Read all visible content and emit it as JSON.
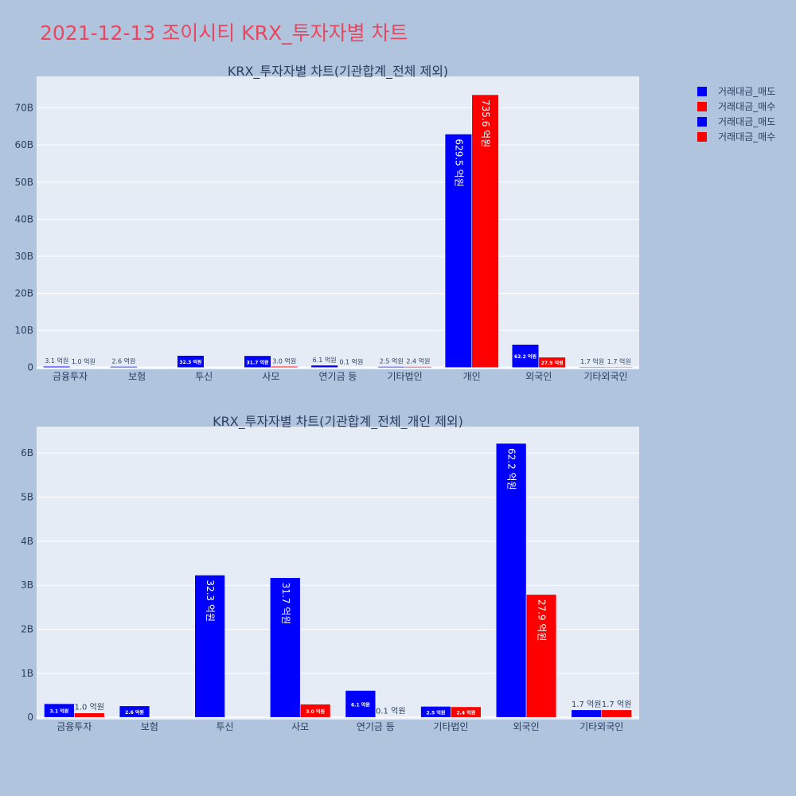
{
  "title": "2021-12-13 조이시티 KRX_투자자별 차트",
  "colors": {
    "sell": "#0000ff",
    "buy": "#ff0000",
    "plot_bg": "#e5ecf6",
    "page_bg": "#b0c4de",
    "title": "#e8475f",
    "grid": "#ffffff",
    "text": "#2a3f5f"
  },
  "legend": {
    "position": "top-right",
    "entries": [
      {
        "label": "거래대금_매도",
        "series": "sell"
      },
      {
        "label": "거래대금_매수",
        "series": "buy"
      },
      {
        "label": "거래대금_매도",
        "series": "sell"
      },
      {
        "label": "거래대금_매수",
        "series": "buy"
      }
    ]
  },
  "chart_data": [
    {
      "type": "bar",
      "title": "KRX_투자자별 차트(기관합계_전체 제외)",
      "categories": [
        "금융투자",
        "보험",
        "투신",
        "사모",
        "연기금 등",
        "기타법인",
        "개인",
        "외국인",
        "기타외국인"
      ],
      "series": [
        {
          "name": "거래대금_매도",
          "color": "#0000ff",
          "values": [
            0.31,
            0.26,
            3.23,
            3.17,
            0.61,
            0.25,
            62.95,
            6.22,
            0.17
          ],
          "labels": [
            "3.1 억원",
            "2.6 억원",
            "32.3 억원",
            "31.7 억원",
            "6.1 억원",
            "2.5 억원",
            "629.5 억원",
            "62.2 억원",
            "1.7 억원"
          ]
        },
        {
          "name": "거래대금_매수",
          "color": "#ff0000",
          "values": [
            0.1,
            0,
            0,
            0.3,
            0.01,
            0.24,
            73.56,
            2.79,
            0.17
          ],
          "labels": [
            "1.0 억원",
            "",
            "",
            "3.0 억원",
            "0.1 억원",
            "2.4 억원",
            "735.6 억원",
            "27.9 억원",
            "1.7 억원"
          ]
        }
      ],
      "yticks": [
        0,
        10,
        20,
        30,
        40,
        50,
        60,
        70
      ],
      "ytick_labels": [
        "0",
        "10B",
        "20B",
        "30B",
        "40B",
        "50B",
        "60B",
        "70B"
      ],
      "ylim": [
        -0.5,
        78.5
      ],
      "grid": true
    },
    {
      "type": "bar",
      "title": "KRX_투자자별 차트(기관합계_전체_개인 제외)",
      "categories": [
        "금융투자",
        "보험",
        "투신",
        "사모",
        "연기금 등",
        "기타법인",
        "외국인",
        "기타외국인"
      ],
      "series": [
        {
          "name": "거래대금_매도",
          "color": "#0000ff",
          "values": [
            0.31,
            0.26,
            3.23,
            3.17,
            0.61,
            0.25,
            6.22,
            0.17
          ],
          "labels": [
            "3.1 억원",
            "2.6 억원",
            "32.3 억원",
            "31.7 억원",
            "6.1 억원",
            "2.5 억원",
            "62.2 억원",
            "1.7 억원"
          ]
        },
        {
          "name": "거래대금_매수",
          "color": "#ff0000",
          "values": [
            0.1,
            0,
            0,
            0.3,
            0.01,
            0.24,
            2.79,
            0.17
          ],
          "labels": [
            "1.0 억원",
            "",
            "",
            "3.0 억원",
            "0.1 억원",
            "2.4 억원",
            "27.9 억원",
            "1.7 억원"
          ]
        }
      ],
      "yticks": [
        0,
        1,
        2,
        3,
        4,
        5,
        6
      ],
      "ytick_labels": [
        "0",
        "1B",
        "2B",
        "3B",
        "4B",
        "5B",
        "6B"
      ],
      "ylim": [
        -0.05,
        6.6
      ],
      "grid": true
    }
  ]
}
